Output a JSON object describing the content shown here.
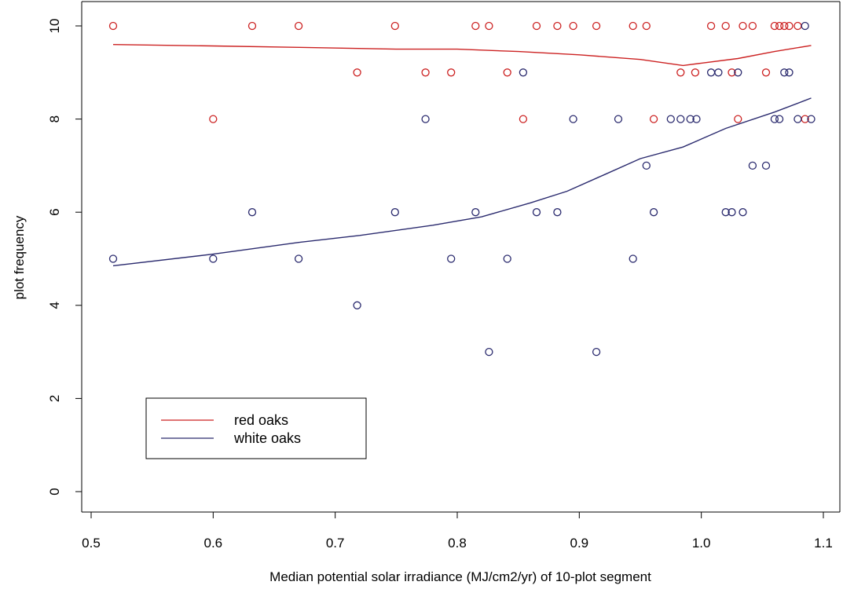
{
  "chart_data": {
    "type": "scatter",
    "title": "",
    "xlabel": "Median potential solar irradiance (MJ/cm2/yr) of 10-plot segment",
    "ylabel": "plot frequency",
    "xlim": [
      0.5,
      1.1
    ],
    "ylim": [
      0,
      10
    ],
    "x_ticks": [
      "0.5",
      "0.6",
      "0.7",
      "0.8",
      "0.9",
      "1.0",
      "1.1"
    ],
    "y_ticks": [
      "0",
      "2",
      "4",
      "6",
      "8",
      "10"
    ],
    "grid": false,
    "legend_position": "bottom-left",
    "series": [
      {
        "name": "red oaks",
        "color": "#cc2222",
        "points": [
          [
            0.518,
            10
          ],
          [
            0.6,
            8
          ],
          [
            0.632,
            10
          ],
          [
            0.67,
            10
          ],
          [
            0.718,
            9
          ],
          [
            0.749,
            10
          ],
          [
            0.774,
            9
          ],
          [
            0.795,
            9
          ],
          [
            0.815,
            10
          ],
          [
            0.826,
            10
          ],
          [
            0.841,
            9
          ],
          [
            0.854,
            8
          ],
          [
            0.865,
            10
          ],
          [
            0.882,
            10
          ],
          [
            0.895,
            10
          ],
          [
            0.914,
            10
          ],
          [
            0.944,
            10
          ],
          [
            0.955,
            10
          ],
          [
            0.961,
            8
          ],
          [
            0.983,
            9
          ],
          [
            0.995,
            9
          ],
          [
            1.008,
            10
          ],
          [
            1.02,
            10
          ],
          [
            1.025,
            9
          ],
          [
            1.03,
            8
          ],
          [
            1.034,
            10
          ],
          [
            1.042,
            10
          ],
          [
            1.053,
            9
          ],
          [
            1.06,
            10
          ],
          [
            1.064,
            10
          ],
          [
            1.068,
            10
          ],
          [
            1.072,
            10
          ],
          [
            1.079,
            10
          ],
          [
            1.085,
            8
          ]
        ],
        "smooth_line": [
          [
            0.518,
            9.6
          ],
          [
            0.6,
            9.57
          ],
          [
            0.67,
            9.54
          ],
          [
            0.75,
            9.5
          ],
          [
            0.8,
            9.5
          ],
          [
            0.85,
            9.45
          ],
          [
            0.9,
            9.38
          ],
          [
            0.95,
            9.28
          ],
          [
            0.985,
            9.15
          ],
          [
            1.0,
            9.2
          ],
          [
            1.03,
            9.3
          ],
          [
            1.06,
            9.45
          ],
          [
            1.09,
            9.58
          ]
        ]
      },
      {
        "name": "white oaks",
        "color": "#2a2a6e",
        "points": [
          [
            0.518,
            5
          ],
          [
            0.6,
            5
          ],
          [
            0.632,
            6
          ],
          [
            0.67,
            5
          ],
          [
            0.718,
            4
          ],
          [
            0.749,
            6
          ],
          [
            0.774,
            8
          ],
          [
            0.795,
            5
          ],
          [
            0.815,
            6
          ],
          [
            0.826,
            3
          ],
          [
            0.841,
            5
          ],
          [
            0.854,
            9
          ],
          [
            0.865,
            6
          ],
          [
            0.882,
            6
          ],
          [
            0.895,
            8
          ],
          [
            0.914,
            3
          ],
          [
            0.932,
            8
          ],
          [
            0.944,
            5
          ],
          [
            0.955,
            7
          ],
          [
            0.961,
            6
          ],
          [
            0.975,
            8
          ],
          [
            0.983,
            8
          ],
          [
            0.991,
            8
          ],
          [
            0.996,
            8
          ],
          [
            1.008,
            9
          ],
          [
            1.014,
            9
          ],
          [
            1.02,
            6
          ],
          [
            1.025,
            6
          ],
          [
            1.03,
            9
          ],
          [
            1.034,
            6
          ],
          [
            1.042,
            7
          ],
          [
            1.053,
            7
          ],
          [
            1.06,
            8
          ],
          [
            1.064,
            8
          ],
          [
            1.068,
            9
          ],
          [
            1.072,
            9
          ],
          [
            1.079,
            8
          ],
          [
            1.085,
            10
          ],
          [
            1.09,
            8
          ]
        ],
        "smooth_line": [
          [
            0.518,
            4.85
          ],
          [
            0.6,
            5.1
          ],
          [
            0.67,
            5.35
          ],
          [
            0.72,
            5.5
          ],
          [
            0.78,
            5.72
          ],
          [
            0.82,
            5.9
          ],
          [
            0.86,
            6.2
          ],
          [
            0.89,
            6.45
          ],
          [
            0.92,
            6.8
          ],
          [
            0.95,
            7.15
          ],
          [
            0.985,
            7.4
          ],
          [
            1.02,
            7.8
          ],
          [
            1.06,
            8.15
          ],
          [
            1.09,
            8.45
          ]
        ]
      }
    ]
  }
}
